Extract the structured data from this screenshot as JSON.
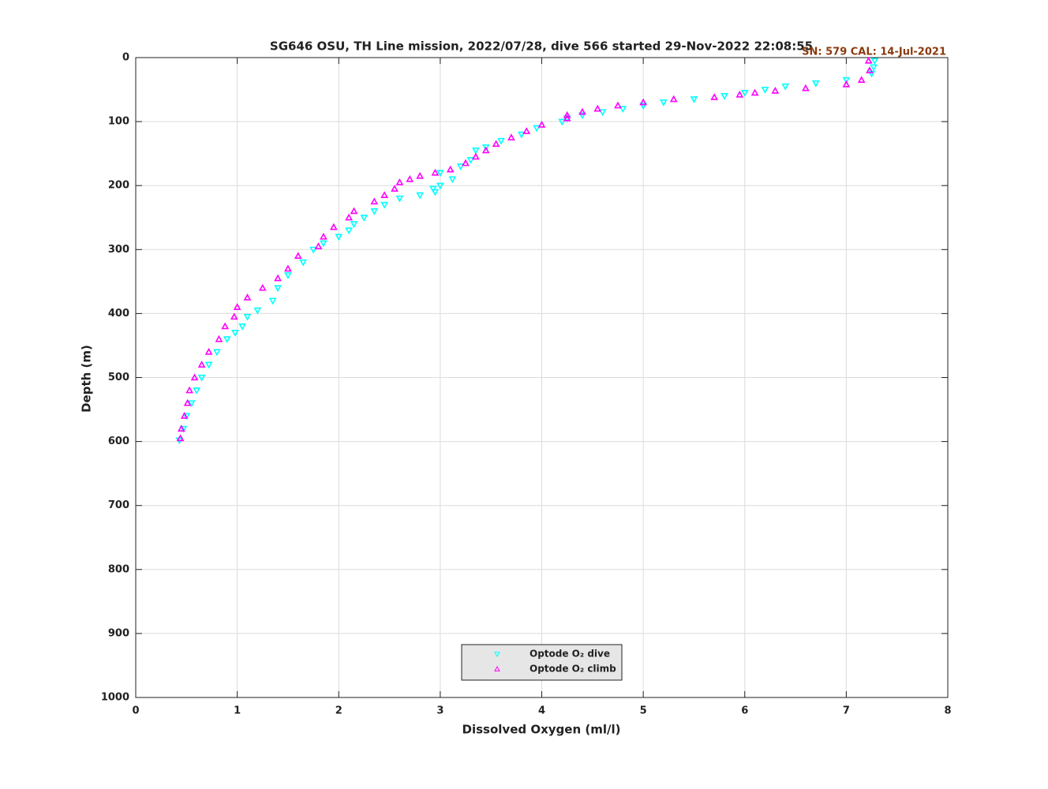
{
  "chart_data": {
    "type": "scatter",
    "title": "SG646 OSU, TH Line mission, 2022/07/28, dive 566 started 29-Nov-2022 22:08:55",
    "annotation": "SN: 579  CAL: 14-Jul-2021",
    "x_label": "Dissolved Oxygen (ml/l)",
    "y_label": "Depth (m)",
    "xlim": [
      0,
      8
    ],
    "xticks": [
      0,
      1,
      2,
      3,
      4,
      5,
      6,
      7,
      8
    ],
    "ylim": [
      0,
      1000
    ],
    "yticks": [
      0,
      100,
      200,
      300,
      400,
      500,
      600,
      700,
      800,
      900,
      1000
    ],
    "y_inverted": true,
    "grid": true,
    "legend": "bottom",
    "series": [
      {
        "name": "Optode O₂ dive",
        "color": "#00ffff",
        "marker": "triangle-down",
        "x": [
          7.28,
          7.27,
          7.25,
          7.0,
          6.7,
          6.4,
          6.2,
          6.0,
          5.8,
          5.5,
          5.2,
          5.0,
          4.8,
          4.6,
          4.4,
          4.25,
          4.2,
          3.95,
          3.8,
          3.6,
          3.45,
          3.35,
          3.3,
          3.2,
          3.0,
          3.12,
          3.0,
          2.93,
          2.95,
          2.8,
          2.6,
          2.45,
          2.35,
          2.25,
          2.15,
          2.1,
          2.0,
          1.85,
          1.75,
          1.65,
          1.5,
          1.4,
          1.35,
          1.2,
          1.1,
          1.05,
          0.98,
          0.9,
          0.8,
          0.72,
          0.65,
          0.6,
          0.55,
          0.5,
          0.47,
          0.43
        ],
        "values": [
          5,
          15,
          25,
          35,
          40,
          45,
          50,
          55,
          60,
          65,
          70,
          75,
          80,
          85,
          90,
          95,
          100,
          110,
          120,
          130,
          140,
          145,
          160,
          170,
          180,
          190,
          200,
          205,
          210,
          215,
          220,
          230,
          240,
          250,
          260,
          270,
          280,
          290,
          300,
          320,
          340,
          360,
          380,
          395,
          405,
          420,
          430,
          440,
          460,
          480,
          500,
          520,
          540,
          560,
          580,
          598
        ]
      },
      {
        "name": "Optode O₂ climb",
        "color": "#ff00ff",
        "marker": "triangle-up",
        "x": [
          7.22,
          7.23,
          7.15,
          7.0,
          6.6,
          6.3,
          6.1,
          5.95,
          5.7,
          5.3,
          5.0,
          4.75,
          4.55,
          4.4,
          4.25,
          4.25,
          4.0,
          3.85,
          3.7,
          3.55,
          3.45,
          3.35,
          3.25,
          3.1,
          2.95,
          2.8,
          2.7,
          2.6,
          2.55,
          2.45,
          2.35,
          2.15,
          2.1,
          1.95,
          1.85,
          1.8,
          1.6,
          1.5,
          1.4,
          1.25,
          1.1,
          1.0,
          0.97,
          0.88,
          0.82,
          0.72,
          0.65,
          0.58,
          0.53,
          0.51,
          0.48,
          0.45,
          0.44
        ],
        "values": [
          5,
          20,
          35,
          42,
          48,
          52,
          55,
          58,
          62,
          65,
          70,
          75,
          80,
          85,
          90,
          95,
          105,
          115,
          125,
          135,
          145,
          155,
          165,
          175,
          180,
          185,
          190,
          195,
          205,
          215,
          225,
          240,
          250,
          265,
          280,
          295,
          310,
          330,
          345,
          360,
          375,
          390,
          405,
          420,
          440,
          460,
          480,
          500,
          520,
          540,
          560,
          580,
          595
        ]
      }
    ]
  }
}
